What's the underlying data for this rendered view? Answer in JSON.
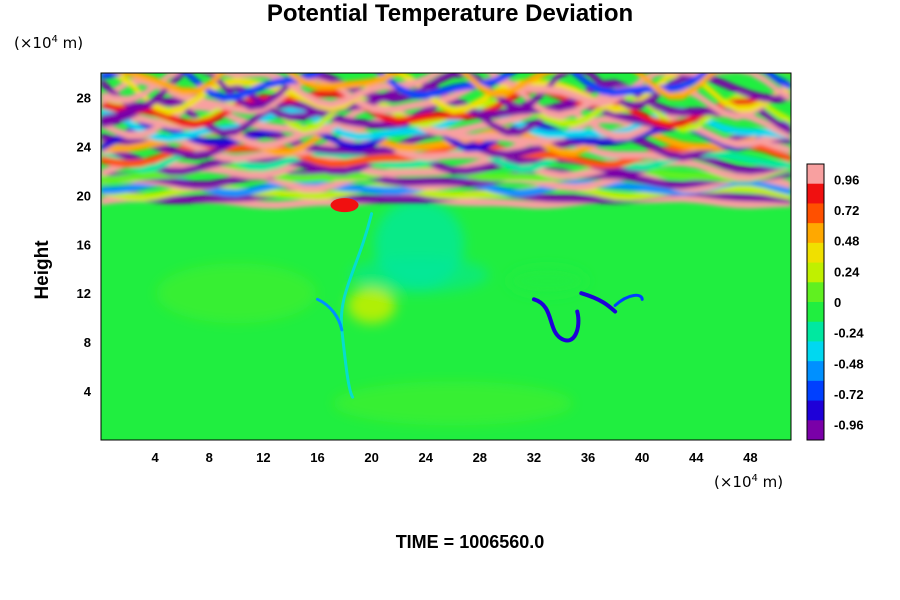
{
  "chart_data": {
    "type": "heatmap",
    "title": "Potential Temperature Deviation",
    "ylabel": "Height",
    "xunit_prefix": "(×10",
    "xunit_exp": "4",
    "xunit_suffix": " m)",
    "yunit_prefix": "(×10",
    "yunit_exp": "4",
    "yunit_suffix": " m)",
    "xticks": [
      "4",
      "8",
      "12",
      "16",
      "20",
      "24",
      "28",
      "32",
      "36",
      "40",
      "44",
      "48"
    ],
    "xtick_values": [
      4,
      8,
      12,
      16,
      20,
      24,
      28,
      32,
      36,
      40,
      44,
      48
    ],
    "yticks": [
      "4",
      "8",
      "12",
      "16",
      "20",
      "24",
      "28"
    ],
    "ytick_values": [
      4,
      8,
      12,
      16,
      20,
      24,
      28
    ],
    "xlim": [
      0,
      51
    ],
    "ylim": [
      0,
      30
    ],
    "colorbar": {
      "ticks": [
        "0.96",
        "0.72",
        "0.48",
        "0.24",
        "0",
        "-0.24",
        "-0.48",
        "-0.72",
        "-0.96"
      ],
      "tick_values": [
        0.96,
        0.72,
        0.48,
        0.24,
        0,
        -0.24,
        -0.48,
        -0.72,
        -0.96
      ],
      "range": [
        -1.08,
        1.08
      ],
      "colors": [
        "#7a00a8",
        "#1e00d8",
        "#0040ff",
        "#0090ff",
        "#00d8f0",
        "#00e8a0",
        "#20ee40",
        "#60f020",
        "#c0f000",
        "#f0e000",
        "#ffa800",
        "#ff5000",
        "#f01010",
        "#f8a0a0"
      ]
    },
    "field_description": "Stratified layer of alternating warm/cold bands above height 20 (values near ±0.96); near-neutral (around 0 to -0.1) below, with cold plumes near x=18, 23 and 35–38 and a warm patch near x=20, y=11."
  },
  "footer": {
    "time_label": "TIME = 1006560.0"
  }
}
